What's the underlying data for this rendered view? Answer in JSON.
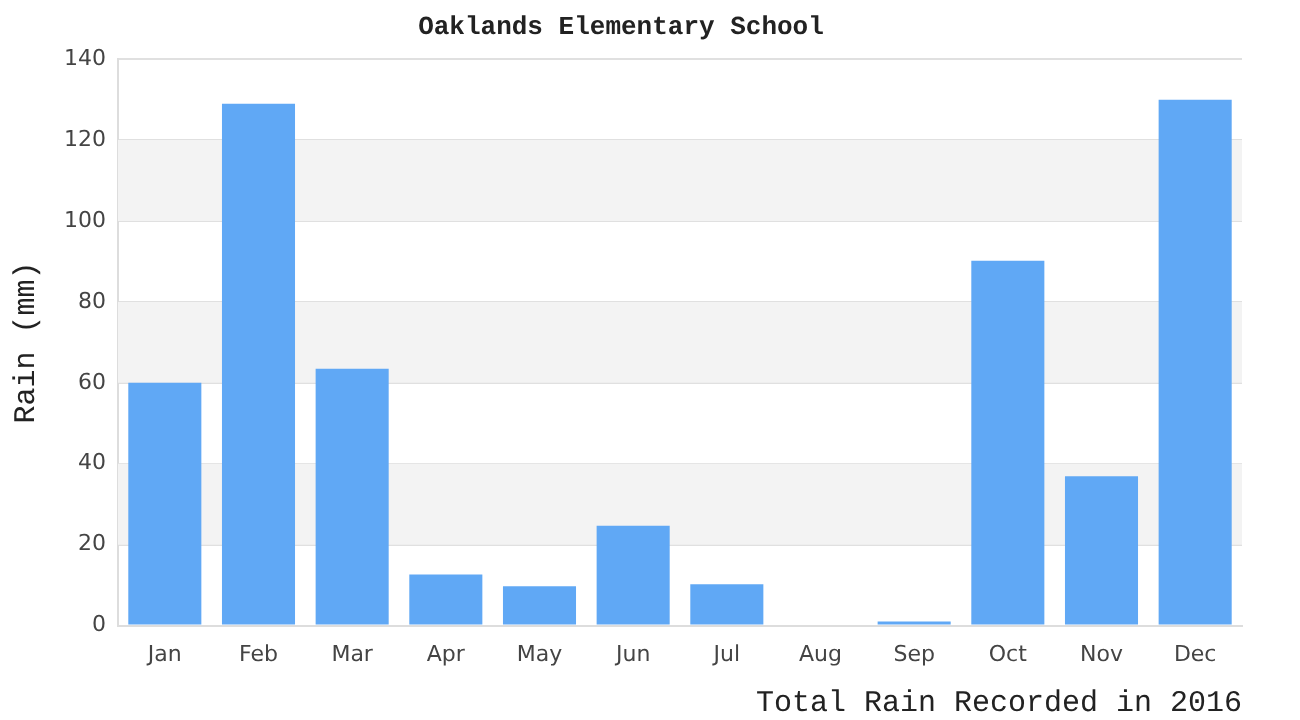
{
  "chart_data": {
    "type": "bar",
    "title": "Oaklands Elementary School",
    "xlabel": "Total Rain Recorded in 2016",
    "ylabel": "Rain (mm)",
    "categories": [
      "Jan",
      "Feb",
      "Mar",
      "Apr",
      "May",
      "Jun",
      "Jul",
      "Aug",
      "Sep",
      "Oct",
      "Nov",
      "Dec"
    ],
    "values": [
      60,
      129,
      63.5,
      12.6,
      9.7,
      24.7,
      10.2,
      0,
      1,
      90.2,
      36.9,
      130
    ],
    "color": "#60a8f5",
    "ylim": [
      0,
      140
    ],
    "yticks": [
      0,
      20,
      40,
      60,
      80,
      100,
      120,
      140
    ],
    "grid": "y"
  }
}
